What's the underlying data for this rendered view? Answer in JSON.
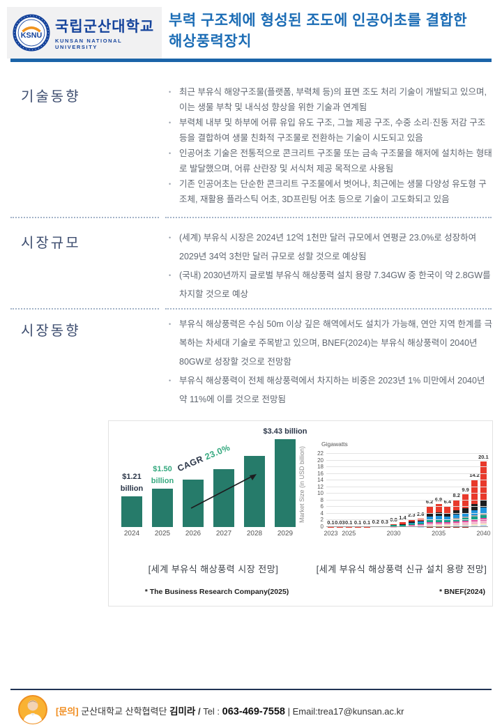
{
  "header": {
    "logo": {
      "acronym": "KSNU",
      "name_ko": "국립군산대학교",
      "name_en": "KUNSAN NATIONAL UNIVERSITY"
    },
    "title_line1": "부력 구조체에 형성된 조도에 인공어초를 결합한",
    "title_line2": "해상풍력장치",
    "accent_color": "#1b6cb5"
  },
  "sections": [
    {
      "title": "기술동향",
      "bullets": [
        "최근 부유식 해양구조물(플랫폼, 부력체 등)의 표면 조도 처리 기술이 개발되고 있으며,  이는 생물 부착 및 내식성 향상을 위한 기술과 연계됨",
        "부력체 내부 및 하부에 어류 유입 유도 구조, 그늘 제공 구조, 수중 소리·진동 저감 구조 등을 결합하여 생물 친화적 구조물로 전환하는 기술이 시도되고 있음",
        "인공어초 기술은 전통적으로 콘크리트 구조물 또는 금속 구조물을 해저에 설치하는 형태로 발달했으며, 어류 산란장 및 서식처 제공 목적으로 사용됨",
        "기존 인공어초는 단순한 콘크리트 구조물에서 벗어나, 최근에는 생물 다양성 유도형 구조체, 재활용 플라스틱 어초, 3D프린팅 어초 등으로 기술이 고도화되고 있음"
      ]
    },
    {
      "title": "시장규모",
      "bullets": [
        "(세계) 부유식 시장은 2024년 12억 1천만 달러 규모에서 연평균 23.0%로 성장하여 2029년 34억 3천만 달러 규모로 성할 것으로 예상됨",
        "(국내) 2030년까지 글로벌 부유식 해상풍력 설치 용량 7.34GW 중 한국이 약 2.8GW를 차지할 것으로 예상"
      ]
    },
    {
      "title": "시장동향",
      "bullets": [
        "부유식 해상풍력은 수심 50m 이상 깊은 해역에서도 설치가 가능해, 연안 지역 한계를 극복하는 차세대 기술로 주목받고 있으며, BNEF(2024)는 부유식 해상풍력이 2040년 80GW로 성장할 것으로 전망함",
        "부유식 해상풍력이 전체 해상풍력에서 차지하는 비중은 2023년 1% 미만에서 2040년 약 11%에 이를 것으로 전망됨"
      ]
    }
  ],
  "chart_data": [
    {
      "type": "bar",
      "title": "[세계 부유식 해상풍력 시장 전망]",
      "source": "* The Business Research Company(2025)",
      "categories": [
        "2024",
        "2025",
        "2026",
        "2027",
        "2028",
        "2029"
      ],
      "values": [
        1.21,
        1.5,
        1.85,
        2.27,
        2.79,
        3.43
      ],
      "ylabel": "Market Size (in USD billion)",
      "ylim": [
        0,
        3.43
      ],
      "bar_color": "#267b6a",
      "cagr": {
        "prefix": "CAGR",
        "value": "23.0%",
        "prefix_color": "#2b3648",
        "value_color": "#35a97f"
      },
      "annotations": [
        {
          "year": "2024",
          "text": "$1.21\nbillion",
          "color": "#2b3648"
        },
        {
          "year": "2025",
          "text": "$1.50\nbillion",
          "color": "#35a97f"
        },
        {
          "year": "2029",
          "text": "$3.43 billion",
          "color": "#2b3648"
        }
      ]
    },
    {
      "type": "stacked-bar",
      "title": "[세계 부유식 해상풍력 신규 설치 용량 전망]",
      "source": "* BNEF(2024)",
      "ylabel": "Gigawatts",
      "years": [
        2023,
        2024,
        2025,
        2026,
        2027,
        2028,
        2029,
        2030,
        2031,
        2032,
        2033,
        2034,
        2035,
        2036,
        2037,
        2038,
        2039,
        2040
      ],
      "totals": [
        0.1,
        0.03,
        0.1,
        0.1,
        0.1,
        0.2,
        0.3,
        0.8,
        1.4,
        2.3,
        2.6,
        6.2,
        6.9,
        6.4,
        8.2,
        9.9,
        14.2,
        20.1
      ],
      "totals_labels": [
        "0.1",
        "0.03",
        "0.1",
        "0.1",
        "0.1",
        "0.2",
        "0.3",
        "0.8",
        "1.4",
        "2.3",
        "2.6",
        "6.2",
        "6.9",
        "6.4",
        "8.2",
        "9.9",
        "14.2",
        "20.1"
      ],
      "ylim": [
        0,
        22
      ],
      "y_ticks": [
        0,
        2,
        4,
        6,
        8,
        10,
        12,
        14,
        16,
        18,
        20,
        22
      ],
      "x_tick_labels": [
        "2023",
        "2025",
        "2030",
        "2035",
        "2040"
      ],
      "x_tick_positions": [
        0,
        2,
        7,
        12,
        17
      ],
      "grid": true,
      "segment_colors": [
        "#8f2318",
        "#b9d7ee",
        "#f5efc6",
        "#f3b9d0",
        "#e04d9e",
        "#13a187",
        "#a8a8a8",
        "#2095dd",
        "#1d1d1f",
        "#e8392b"
      ],
      "segments": [
        [
          [
            9,
            0.1
          ]
        ],
        [
          [
            9,
            0.03
          ]
        ],
        [
          [
            9,
            0.1
          ]
        ],
        [
          [
            9,
            0.1
          ]
        ],
        [
          [
            9,
            0.1
          ]
        ],
        [
          [
            9,
            0.2
          ]
        ],
        [
          [
            9,
            0.3
          ]
        ],
        [
          [
            3,
            0.1
          ],
          [
            5,
            0.45
          ],
          [
            7,
            0.15
          ],
          [
            9,
            0.1
          ]
        ],
        [
          [
            3,
            0.3
          ],
          [
            5,
            0.35
          ],
          [
            8,
            0.25
          ],
          [
            9,
            0.5
          ]
        ],
        [
          [
            3,
            0.45
          ],
          [
            4,
            0.15
          ],
          [
            5,
            0.4
          ],
          [
            7,
            0.3
          ],
          [
            8,
            0.3
          ],
          [
            9,
            0.7
          ]
        ],
        [
          [
            1,
            0.1
          ],
          [
            3,
            0.55
          ],
          [
            4,
            0.2
          ],
          [
            5,
            0.45
          ],
          [
            7,
            0.3
          ],
          [
            8,
            0.35
          ],
          [
            9,
            0.65
          ]
        ],
        [
          [
            0,
            0.1
          ],
          [
            1,
            0.2
          ],
          [
            2,
            0.2
          ],
          [
            3,
            0.5
          ],
          [
            4,
            0.4
          ],
          [
            5,
            0.6
          ],
          [
            6,
            0.3
          ],
          [
            7,
            0.8
          ],
          [
            8,
            1.1
          ],
          [
            9,
            2.0
          ]
        ],
        [
          [
            0,
            0.1
          ],
          [
            1,
            0.2
          ],
          [
            2,
            0.25
          ],
          [
            3,
            0.5
          ],
          [
            4,
            0.45
          ],
          [
            5,
            0.6
          ],
          [
            6,
            0.3
          ],
          [
            7,
            0.9
          ],
          [
            8,
            1.2
          ],
          [
            9,
            2.4
          ]
        ],
        [
          [
            0,
            0.1
          ],
          [
            1,
            0.2
          ],
          [
            2,
            0.25
          ],
          [
            3,
            0.5
          ],
          [
            4,
            0.4
          ],
          [
            5,
            0.55
          ],
          [
            6,
            0.3
          ],
          [
            7,
            0.8
          ],
          [
            8,
            1.1
          ],
          [
            9,
            2.2
          ]
        ],
        [
          [
            0,
            0.1
          ],
          [
            1,
            0.25
          ],
          [
            2,
            0.3
          ],
          [
            3,
            0.6
          ],
          [
            4,
            0.5
          ],
          [
            5,
            0.6
          ],
          [
            6,
            0.35
          ],
          [
            7,
            1.0
          ],
          [
            8,
            1.3
          ],
          [
            9,
            3.2
          ]
        ],
        [
          [
            0,
            0.1
          ],
          [
            1,
            0.25
          ],
          [
            2,
            0.35
          ],
          [
            3,
            0.7
          ],
          [
            4,
            0.6
          ],
          [
            5,
            0.7
          ],
          [
            6,
            0.4
          ],
          [
            7,
            1.1
          ],
          [
            8,
            1.5
          ],
          [
            9,
            4.2
          ]
        ],
        [
          [
            0,
            0.15
          ],
          [
            1,
            0.3
          ],
          [
            2,
            0.4
          ],
          [
            3,
            0.8
          ],
          [
            4,
            0.7
          ],
          [
            5,
            0.8
          ],
          [
            6,
            0.5
          ],
          [
            7,
            1.4
          ],
          [
            8,
            1.8
          ],
          [
            9,
            7.35
          ]
        ],
        [
          [
            0,
            0.2
          ],
          [
            1,
            0.35
          ],
          [
            2,
            0.5
          ],
          [
            3,
            0.9
          ],
          [
            4,
            0.9
          ],
          [
            5,
            0.9
          ],
          [
            6,
            0.6
          ],
          [
            7,
            1.7
          ],
          [
            8,
            2.0
          ],
          [
            9,
            12.05
          ]
        ]
      ]
    }
  ],
  "footer": {
    "contact_label": "[문의]",
    "org": "군산대학교 산학협력단",
    "name": "김미라",
    "separator": "/",
    "tel_label": "Tel :",
    "tel": "063-469-7558",
    "email": "| Email:trea17@kunsan.ac.kr"
  }
}
